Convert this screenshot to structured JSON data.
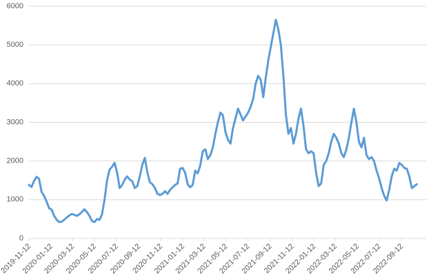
{
  "chart_data": {
    "type": "line",
    "title": "",
    "xlabel": "",
    "ylabel": "",
    "ylim": [
      0,
      6000
    ],
    "y_ticks": [
      0,
      1000,
      2000,
      3000,
      4000,
      5000,
      6000
    ],
    "y_tick_labels": [
      "0",
      "1000",
      "2000",
      "3000",
      "4000",
      "5000",
      "6000"
    ],
    "x_range": [
      "2019-11-12",
      "2022-11-20"
    ],
    "x_ticks": [
      "2019-11-12",
      "2020-01-12",
      "2020-03-12",
      "2020-05-12",
      "2020-07-12",
      "2020-09-12",
      "2020-11-12",
      "2021-01-12",
      "2021-03-12",
      "2021-05-12",
      "2021-07-12",
      "2021-09-12",
      "2021-11-12",
      "2022-01-12",
      "2022-03-12",
      "2022-05-12",
      "2022-07-12",
      "2022-09-12"
    ],
    "grid": "horizontal",
    "legend": "none",
    "color": "#5b9bd5",
    "series": [
      {
        "points": [
          [
            "2019-11-12",
            1380
          ],
          [
            "2019-11-19",
            1330
          ],
          [
            "2019-11-26",
            1480
          ],
          [
            "2019-12-03",
            1590
          ],
          [
            "2019-12-10",
            1540
          ],
          [
            "2019-12-17",
            1200
          ],
          [
            "2019-12-24",
            1100
          ],
          [
            "2019-12-31",
            950
          ],
          [
            "2020-01-07",
            780
          ],
          [
            "2020-01-14",
            740
          ],
          [
            "2020-01-21",
            580
          ],
          [
            "2020-01-28",
            480
          ],
          [
            "2020-02-04",
            420
          ],
          [
            "2020-02-11",
            430
          ],
          [
            "2020-02-18",
            480
          ],
          [
            "2020-02-25",
            540
          ],
          [
            "2020-03-03",
            590
          ],
          [
            "2020-03-10",
            630
          ],
          [
            "2020-03-17",
            610
          ],
          [
            "2020-03-24",
            580
          ],
          [
            "2020-03-31",
            620
          ],
          [
            "2020-04-07",
            680
          ],
          [
            "2020-04-14",
            750
          ],
          [
            "2020-04-21",
            680
          ],
          [
            "2020-04-28",
            580
          ],
          [
            "2020-05-05",
            450
          ],
          [
            "2020-05-12",
            420
          ],
          [
            "2020-05-19",
            500
          ],
          [
            "2020-05-26",
            480
          ],
          [
            "2020-06-02",
            620
          ],
          [
            "2020-06-09",
            1000
          ],
          [
            "2020-06-16",
            1500
          ],
          [
            "2020-06-23",
            1780
          ],
          [
            "2020-06-30",
            1850
          ],
          [
            "2020-07-07",
            1950
          ],
          [
            "2020-07-14",
            1700
          ],
          [
            "2020-07-21",
            1300
          ],
          [
            "2020-07-28",
            1380
          ],
          [
            "2020-08-04",
            1520
          ],
          [
            "2020-08-11",
            1600
          ],
          [
            "2020-08-18",
            1520
          ],
          [
            "2020-08-25",
            1480
          ],
          [
            "2020-09-01",
            1300
          ],
          [
            "2020-09-08",
            1350
          ],
          [
            "2020-09-15",
            1600
          ],
          [
            "2020-09-22",
            1900
          ],
          [
            "2020-09-29",
            2080
          ],
          [
            "2020-10-06",
            1700
          ],
          [
            "2020-10-13",
            1450
          ],
          [
            "2020-10-20",
            1400
          ],
          [
            "2020-10-27",
            1300
          ],
          [
            "2020-11-03",
            1150
          ],
          [
            "2020-11-10",
            1120
          ],
          [
            "2020-11-17",
            1150
          ],
          [
            "2020-11-24",
            1220
          ],
          [
            "2020-12-01",
            1150
          ],
          [
            "2020-12-08",
            1250
          ],
          [
            "2020-12-15",
            1320
          ],
          [
            "2020-12-22",
            1380
          ],
          [
            "2020-12-29",
            1420
          ],
          [
            "2021-01-05",
            1800
          ],
          [
            "2021-01-12",
            1820
          ],
          [
            "2021-01-19",
            1700
          ],
          [
            "2021-01-26",
            1400
          ],
          [
            "2021-02-02",
            1320
          ],
          [
            "2021-02-09",
            1380
          ],
          [
            "2021-02-16",
            1750
          ],
          [
            "2021-02-23",
            1680
          ],
          [
            "2021-03-02",
            1880
          ],
          [
            "2021-03-09",
            2250
          ],
          [
            "2021-03-16",
            2300
          ],
          [
            "2021-03-23",
            2050
          ],
          [
            "2021-03-30",
            2150
          ],
          [
            "2021-04-06",
            2350
          ],
          [
            "2021-04-13",
            2700
          ],
          [
            "2021-04-20",
            3000
          ],
          [
            "2021-04-27",
            3250
          ],
          [
            "2021-05-04",
            3180
          ],
          [
            "2021-05-11",
            2750
          ],
          [
            "2021-05-18",
            2550
          ],
          [
            "2021-05-25",
            2450
          ],
          [
            "2021-06-01",
            2850
          ],
          [
            "2021-06-08",
            3100
          ],
          [
            "2021-06-15",
            3350
          ],
          [
            "2021-06-22",
            3200
          ],
          [
            "2021-06-29",
            3050
          ],
          [
            "2021-07-06",
            3150
          ],
          [
            "2021-07-13",
            3250
          ],
          [
            "2021-07-20",
            3400
          ],
          [
            "2021-07-27",
            3600
          ],
          [
            "2021-08-03",
            4000
          ],
          [
            "2021-08-10",
            4200
          ],
          [
            "2021-08-17",
            4100
          ],
          [
            "2021-08-24",
            3650
          ],
          [
            "2021-08-31",
            4150
          ],
          [
            "2021-09-07",
            4600
          ],
          [
            "2021-09-14",
            4950
          ],
          [
            "2021-09-21",
            5300
          ],
          [
            "2021-09-28",
            5650
          ],
          [
            "2021-10-05",
            5400
          ],
          [
            "2021-10-12",
            5000
          ],
          [
            "2021-10-19",
            4200
          ],
          [
            "2021-10-26",
            3200
          ],
          [
            "2021-11-02",
            2700
          ],
          [
            "2021-11-09",
            2850
          ],
          [
            "2021-11-16",
            2450
          ],
          [
            "2021-11-23",
            2700
          ],
          [
            "2021-11-30",
            3100
          ],
          [
            "2021-12-07",
            3350
          ],
          [
            "2021-12-14",
            2900
          ],
          [
            "2021-12-21",
            2300
          ],
          [
            "2021-12-28",
            2200
          ],
          [
            "2022-01-04",
            2250
          ],
          [
            "2022-01-11",
            2200
          ],
          [
            "2022-01-18",
            1700
          ],
          [
            "2022-01-25",
            1350
          ],
          [
            "2022-02-01",
            1420
          ],
          [
            "2022-02-08",
            1900
          ],
          [
            "2022-02-15",
            2000
          ],
          [
            "2022-02-22",
            2200
          ],
          [
            "2022-03-01",
            2500
          ],
          [
            "2022-03-08",
            2700
          ],
          [
            "2022-03-15",
            2600
          ],
          [
            "2022-03-22",
            2450
          ],
          [
            "2022-03-29",
            2200
          ],
          [
            "2022-04-05",
            2100
          ],
          [
            "2022-04-12",
            2300
          ],
          [
            "2022-04-19",
            2600
          ],
          [
            "2022-04-26",
            3000
          ],
          [
            "2022-05-03",
            3350
          ],
          [
            "2022-05-10",
            3000
          ],
          [
            "2022-05-17",
            2500
          ],
          [
            "2022-05-24",
            2350
          ],
          [
            "2022-05-31",
            2600
          ],
          [
            "2022-06-07",
            2150
          ],
          [
            "2022-06-14",
            2050
          ],
          [
            "2022-06-21",
            2100
          ],
          [
            "2022-06-28",
            2000
          ],
          [
            "2022-07-05",
            1750
          ],
          [
            "2022-07-12",
            1550
          ],
          [
            "2022-07-19",
            1300
          ],
          [
            "2022-07-26",
            1100
          ],
          [
            "2022-08-02",
            980
          ],
          [
            "2022-08-09",
            1250
          ],
          [
            "2022-08-16",
            1600
          ],
          [
            "2022-08-23",
            1800
          ],
          [
            "2022-08-30",
            1750
          ],
          [
            "2022-09-06",
            1950
          ],
          [
            "2022-09-13",
            1900
          ],
          [
            "2022-09-20",
            1820
          ],
          [
            "2022-09-27",
            1800
          ],
          [
            "2022-10-04",
            1600
          ],
          [
            "2022-10-11",
            1300
          ],
          [
            "2022-10-18",
            1350
          ],
          [
            "2022-10-25",
            1400
          ]
        ]
      }
    ]
  }
}
